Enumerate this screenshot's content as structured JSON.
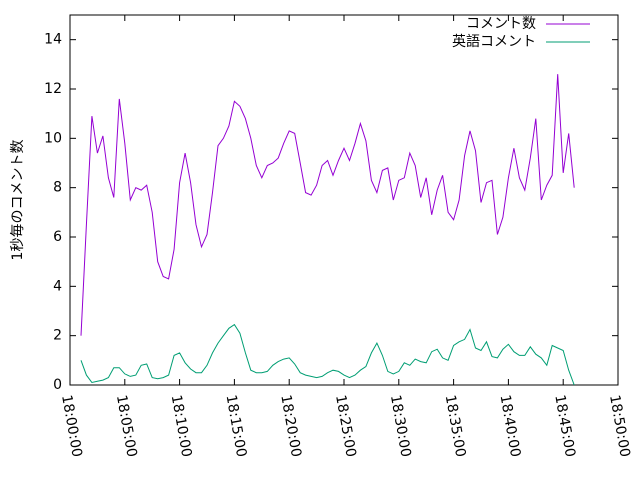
{
  "chart_data": {
    "type": "line",
    "y_label": "1秒毎のコメント数",
    "x": [
      "18:01:00",
      "18:01:30",
      "18:02:00",
      "18:02:30",
      "18:03:00",
      "18:03:30",
      "18:04:00",
      "18:04:30",
      "18:05:00",
      "18:05:30",
      "18:06:00",
      "18:06:30",
      "18:07:00",
      "18:07:30",
      "18:08:00",
      "18:08:30",
      "18:09:00",
      "18:09:30",
      "18:10:00",
      "18:10:30",
      "18:11:00",
      "18:11:30",
      "18:12:00",
      "18:12:30",
      "18:13:00",
      "18:13:30",
      "18:14:00",
      "18:14:30",
      "18:15:00",
      "18:15:30",
      "18:16:00",
      "18:16:30",
      "18:17:00",
      "18:17:30",
      "18:18:00",
      "18:18:30",
      "18:19:00",
      "18:19:30",
      "18:20:00",
      "18:20:30",
      "18:21:00",
      "18:21:30",
      "18:22:00",
      "18:22:30",
      "18:23:00",
      "18:23:30",
      "18:24:00",
      "18:24:30",
      "18:25:00",
      "18:25:30",
      "18:26:00",
      "18:26:30",
      "18:27:00",
      "18:27:30",
      "18:28:00",
      "18:28:30",
      "18:29:00",
      "18:29:30",
      "18:30:00",
      "18:30:30",
      "18:31:00",
      "18:31:30",
      "18:32:00",
      "18:32:30",
      "18:33:00",
      "18:33:30",
      "18:34:00",
      "18:34:30",
      "18:35:00",
      "18:35:30",
      "18:36:00",
      "18:36:30",
      "18:37:00",
      "18:37:30",
      "18:38:00",
      "18:38:30",
      "18:39:00",
      "18:39:30",
      "18:40:00",
      "18:40:30",
      "18:41:00",
      "18:41:30",
      "18:42:00",
      "18:42:30",
      "18:43:00",
      "18:43:30",
      "18:44:00",
      "18:44:30",
      "18:45:00",
      "18:45:30",
      "18:46:00"
    ],
    "series": [
      {
        "name": "コメント数",
        "color": "#9400d3",
        "values": [
          2.0,
          6.5,
          10.9,
          9.4,
          10.1,
          8.4,
          7.6,
          11.6,
          9.8,
          7.5,
          8.0,
          7.9,
          8.1,
          7.0,
          5.0,
          4.4,
          4.3,
          5.5,
          8.2,
          9.4,
          8.2,
          6.5,
          5.6,
          6.1,
          7.8,
          9.7,
          10.0,
          10.5,
          11.5,
          11.3,
          10.8,
          10.0,
          8.9,
          8.4,
          8.9,
          9.0,
          9.2,
          9.8,
          10.3,
          10.2,
          9.0,
          7.8,
          7.7,
          8.1,
          8.9,
          9.1,
          8.5,
          9.1,
          9.6,
          9.1,
          9.8,
          10.6,
          9.9,
          8.3,
          7.8,
          8.7,
          8.8,
          7.5,
          8.3,
          8.4,
          9.4,
          8.9,
          7.6,
          8.4,
          6.9,
          7.9,
          8.5,
          7.0,
          6.7,
          7.5,
          9.3,
          10.3,
          9.5,
          7.4,
          8.2,
          8.3,
          6.1,
          6.8,
          8.4,
          9.6,
          8.4,
          7.9,
          9.2,
          10.8,
          7.5,
          8.1,
          8.5,
          12.6,
          8.6,
          10.2,
          8.0
        ]
      },
      {
        "name": "英語コメント",
        "color": "#009e73",
        "values": [
          1.0,
          0.4,
          0.1,
          0.15,
          0.2,
          0.3,
          0.7,
          0.7,
          0.45,
          0.35,
          0.4,
          0.8,
          0.85,
          0.3,
          0.25,
          0.3,
          0.4,
          1.2,
          1.3,
          0.9,
          0.65,
          0.5,
          0.5,
          0.8,
          1.3,
          1.7,
          2.0,
          2.3,
          2.45,
          2.1,
          1.3,
          0.6,
          0.5,
          0.5,
          0.55,
          0.8,
          0.95,
          1.05,
          1.1,
          0.85,
          0.5,
          0.4,
          0.35,
          0.3,
          0.35,
          0.5,
          0.6,
          0.55,
          0.4,
          0.3,
          0.4,
          0.6,
          0.75,
          1.3,
          1.7,
          1.2,
          0.55,
          0.45,
          0.55,
          0.9,
          0.8,
          1.05,
          0.95,
          0.9,
          1.35,
          1.45,
          1.1,
          1.0,
          1.6,
          1.75,
          1.85,
          2.25,
          1.5,
          1.4,
          1.75,
          1.15,
          1.1,
          1.45,
          1.65,
          1.35,
          1.2,
          1.2,
          1.55,
          1.25,
          1.1,
          0.8,
          1.6,
          1.5,
          1.4,
          0.6,
          0.0
        ]
      }
    ],
    "xlim": [
      "18:00:00",
      "18:50:00"
    ],
    "xticks": [
      "18:00:00",
      "18:05:00",
      "18:10:00",
      "18:15:00",
      "18:20:00",
      "18:25:00",
      "18:30:00",
      "18:35:00",
      "18:40:00",
      "18:45:00",
      "18:50:00"
    ],
    "ylim": [
      0,
      15
    ],
    "yticks": [
      0,
      2,
      4,
      6,
      8,
      10,
      12,
      14
    ],
    "legend": "top-right"
  }
}
